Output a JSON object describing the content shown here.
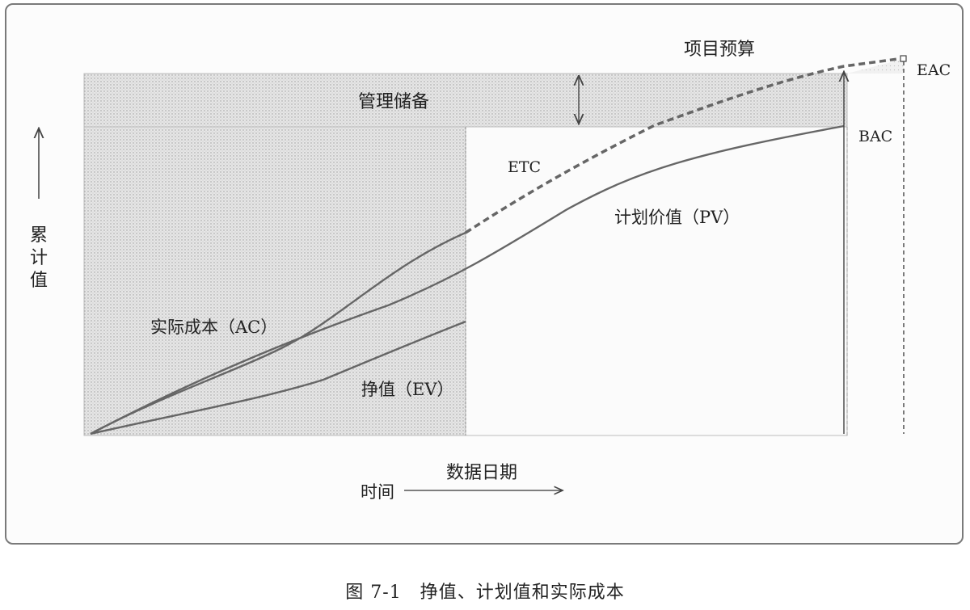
{
  "diagram": {
    "labels": {
      "project_budget": "项目预算",
      "management_reserve": "管理储备",
      "etc": "ETC",
      "eac": "EAC",
      "bac": "BAC",
      "pv": "计划价值（PV）",
      "ac": "实际成本（AC）",
      "ev": "挣值（EV）",
      "y_axis": "累计值",
      "data_date": "数据日期",
      "time": "时间"
    },
    "colors": {
      "reserve_fill": "#e3e3e3",
      "actual_region_fill": "#eaeaea",
      "curve": "#555555",
      "frame": "#7a7a7a"
    }
  },
  "caption": "图 7-1　挣值、计划值和实际成本"
}
